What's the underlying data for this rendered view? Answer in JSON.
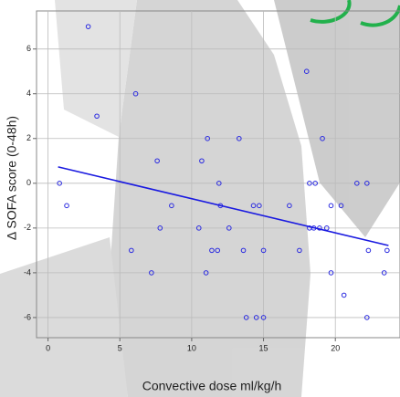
{
  "chart_data": {
    "type": "scatter",
    "x_label": "Convective  dose ml/kg/h",
    "y_label": "Δ SOFA score (0-48h)",
    "xlim": [
      -0.8,
      24.5
    ],
    "xticks": [
      0,
      5,
      10,
      15,
      20
    ],
    "ylim": [
      -6.9,
      7.7
    ],
    "yticks": [
      -6,
      -4,
      -2,
      0,
      2,
      4,
      6
    ],
    "grid": true,
    "color": "#2a2ae0",
    "x": [
      2.8,
      0.8,
      1.3,
      3.4,
      6.1,
      5.8,
      7.6,
      7.8,
      7.2,
      8.6,
      10.5,
      10.7,
      11.1,
      11.0,
      11.4,
      11.8,
      11.9,
      12.0,
      12.6,
      13.3,
      13.6,
      13.8,
      14.3,
      14.7,
      14.5,
      15.0,
      15.0,
      16.8,
      17.5,
      18.0,
      18.2,
      18.2,
      18.5,
      18.6,
      18.9,
      19.1,
      19.4,
      19.7,
      19.7,
      20.4,
      20.6,
      21.5,
      22.2,
      22.2,
      22.3,
      23.4,
      23.6
    ],
    "values": [
      7,
      0,
      -1,
      3,
      4,
      -3,
      1,
      -2,
      -4,
      -1,
      -2,
      1,
      2,
      -4,
      -3,
      -3,
      0,
      -1,
      -2,
      2,
      -3,
      -6,
      -1,
      -1,
      -6,
      -6,
      -3,
      -1,
      -3,
      5,
      0,
      -2,
      -2,
      0,
      -2,
      2,
      -2,
      -1,
      -4,
      -1,
      -5,
      0,
      0,
      -6,
      -3,
      -4,
      -3
    ],
    "fit": {
      "x": [
        0.7,
        23.7
      ],
      "y": [
        0.73,
        -2.78
      ],
      "color": "#1a1ae0"
    }
  }
}
